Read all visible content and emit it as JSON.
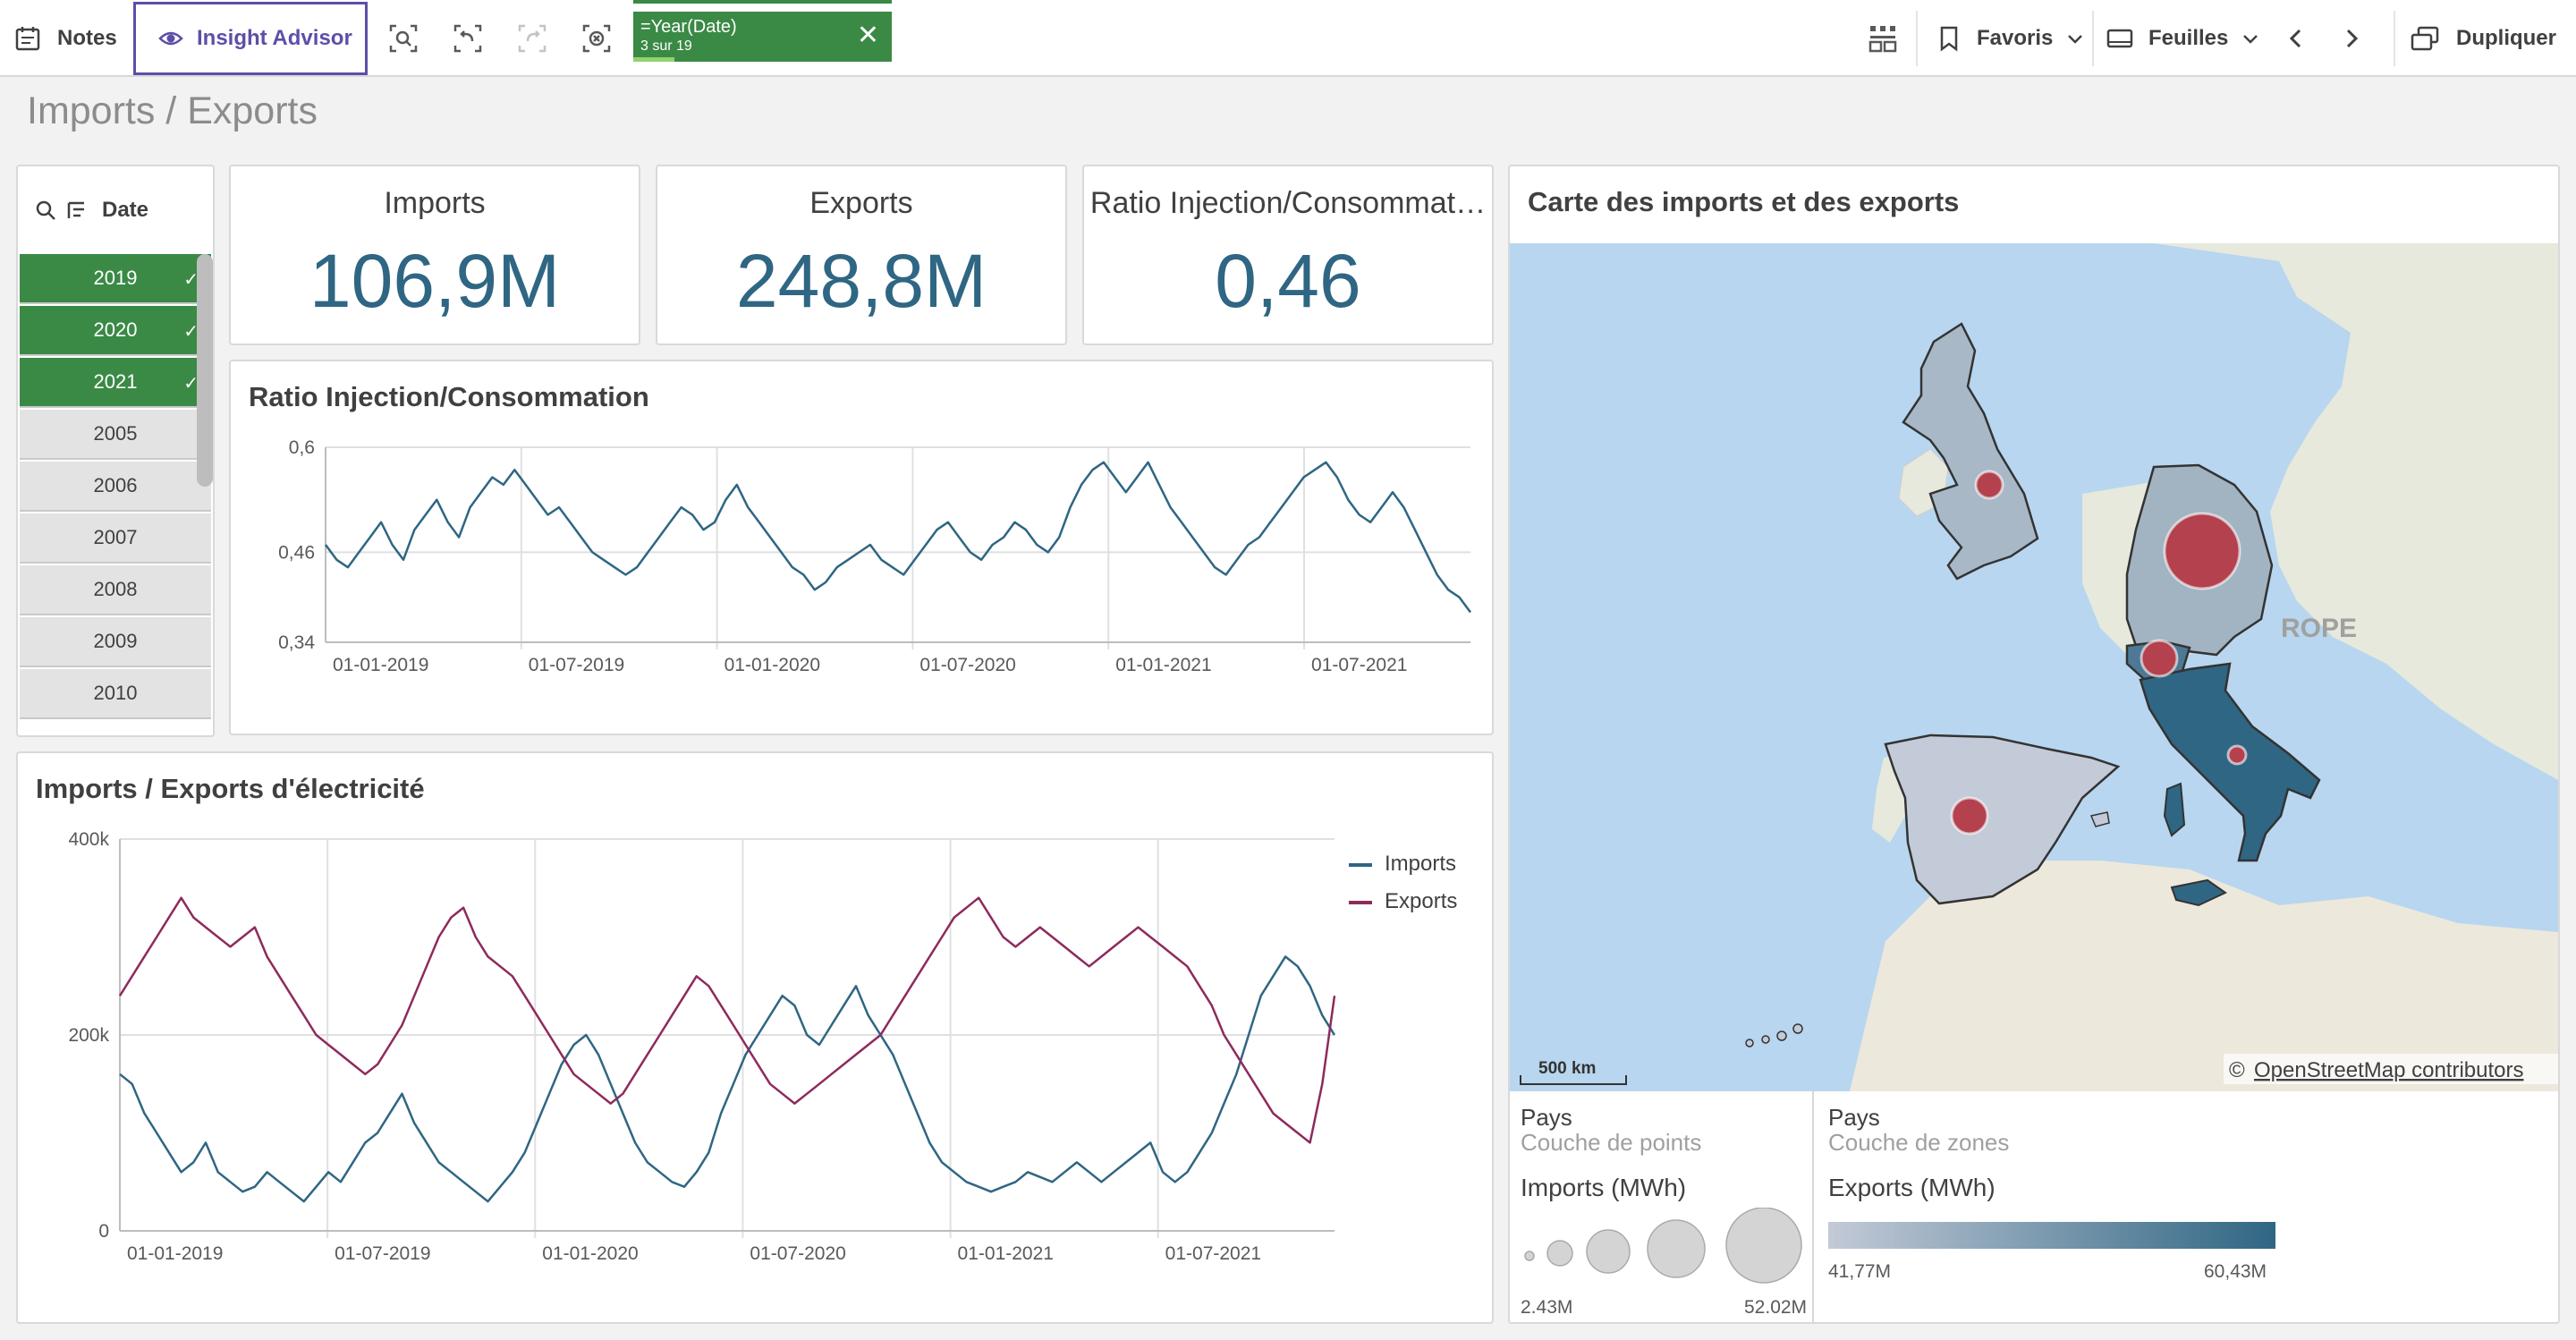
{
  "toolbar": {
    "notes_label": "Notes",
    "insight_label": "Insight Advisor",
    "selection": {
      "title": "=Year(Date)",
      "sub": "3 sur 19",
      "progress": 0.158
    },
    "favoris_label": "Favoris",
    "feuilles_label": "Feuilles",
    "dupliquer_label": "Dupliquer"
  },
  "sheet_title": "Imports / Exports",
  "filter": {
    "label": "Date",
    "items": [
      {
        "label": "2019",
        "selected": true
      },
      {
        "label": "2020",
        "selected": true
      },
      {
        "label": "2021",
        "selected": true
      },
      {
        "label": "2005",
        "selected": false
      },
      {
        "label": "2006",
        "selected": false
      },
      {
        "label": "2007",
        "selected": false
      },
      {
        "label": "2008",
        "selected": false
      },
      {
        "label": "2009",
        "selected": false
      },
      {
        "label": "2010",
        "selected": false
      }
    ]
  },
  "kpis": [
    {
      "label": "Imports",
      "value": "106,9M"
    },
    {
      "label": "Exports",
      "value": "248,8M"
    },
    {
      "label": "Ratio Injection/Consommat…",
      "value": "0,46"
    }
  ],
  "ratio_chart": {
    "title": "Ratio Injection/Consommation"
  },
  "io_chart": {
    "title": "Imports / Exports d'électricité"
  },
  "map": {
    "title": "Carte des imports et des exports",
    "scale_label": "500 km",
    "region_label": "ROPE",
    "copyright_prefix": "©",
    "copyright_link": "OpenStreetMap contributors",
    "legend_points": {
      "layer_name": "Pays",
      "layer_type": "Couche de points",
      "measure": "Imports (MWh)",
      "min": "2.43M",
      "max": "52.02M"
    },
    "legend_areas": {
      "layer_name": "Pays",
      "layer_type": "Couche de zones",
      "measure": "Exports (MWh)",
      "min": "41,77M",
      "max": "60,43M"
    }
  },
  "colors": {
    "accent_green": "#3a8a45",
    "imports_line": "#2f6683",
    "exports_line": "#8e2a5c",
    "kpi_value": "#2f6683",
    "bubble": "#b3414e",
    "insight": "#5c4fa8"
  },
  "chart_data": [
    {
      "type": "line",
      "title": "Ratio Injection/Consommation",
      "x_ticks": [
        "01-01-2019",
        "01-07-2019",
        "01-01-2020",
        "01-07-2020",
        "01-01-2021",
        "01-07-2021"
      ],
      "y_ticks": [
        "0,34",
        "0,46",
        "0,6"
      ],
      "ylim": [
        0.34,
        0.6
      ],
      "x_range": [
        "2019-01-01",
        "2021-12-31"
      ],
      "series": [
        {
          "values": [
            0.47,
            0.45,
            0.44,
            0.46,
            0.48,
            0.5,
            0.47,
            0.45,
            0.49,
            0.51,
            0.53,
            0.5,
            0.48,
            0.52,
            0.54,
            0.56,
            0.55,
            0.57,
            0.55,
            0.53,
            0.51,
            0.52,
            0.5,
            0.48,
            0.46,
            0.45,
            0.44,
            0.43,
            0.44,
            0.46,
            0.48,
            0.5,
            0.52,
            0.51,
            0.49,
            0.5,
            0.53,
            0.55,
            0.52,
            0.5,
            0.48,
            0.46,
            0.44,
            0.43,
            0.41,
            0.42,
            0.44,
            0.45,
            0.46,
            0.47,
            0.45,
            0.44,
            0.43,
            0.45,
            0.47,
            0.49,
            0.5,
            0.48,
            0.46,
            0.45,
            0.47,
            0.48,
            0.5,
            0.49,
            0.47,
            0.46,
            0.48,
            0.52,
            0.55,
            0.57,
            0.58,
            0.56,
            0.54,
            0.56,
            0.58,
            0.55,
            0.52,
            0.5,
            0.48,
            0.46,
            0.44,
            0.43,
            0.45,
            0.47,
            0.48,
            0.5,
            0.52,
            0.54,
            0.56,
            0.57,
            0.58,
            0.56,
            0.53,
            0.51,
            0.5,
            0.52,
            0.54,
            0.52,
            0.49,
            0.46,
            0.43,
            0.41,
            0.4,
            0.38
          ]
        }
      ]
    },
    {
      "type": "line",
      "title": "Imports / Exports d'électricité",
      "x_ticks": [
        "01-01-2019",
        "01-07-2019",
        "01-01-2020",
        "01-07-2020",
        "01-01-2021",
        "01-07-2021"
      ],
      "y_ticks": [
        "0",
        "200k",
        "400k"
      ],
      "ylim": [
        0,
        400000
      ],
      "x_range": [
        "2019-01-01",
        "2021-12-31"
      ],
      "legend_position": "top-right",
      "series": [
        {
          "name": "Imports",
          "values": [
            160000,
            150000,
            120000,
            100000,
            80000,
            60000,
            70000,
            90000,
            60000,
            50000,
            40000,
            45000,
            60000,
            50000,
            40000,
            30000,
            45000,
            60000,
            50000,
            70000,
            90000,
            100000,
            120000,
            140000,
            110000,
            90000,
            70000,
            60000,
            50000,
            40000,
            30000,
            45000,
            60000,
            80000,
            110000,
            140000,
            170000,
            190000,
            200000,
            180000,
            150000,
            120000,
            90000,
            70000,
            60000,
            50000,
            45000,
            60000,
            80000,
            120000,
            150000,
            180000,
            200000,
            220000,
            240000,
            230000,
            200000,
            190000,
            210000,
            230000,
            250000,
            220000,
            200000,
            180000,
            150000,
            120000,
            90000,
            70000,
            60000,
            50000,
            45000,
            40000,
            45000,
            50000,
            60000,
            55000,
            50000,
            60000,
            70000,
            60000,
            50000,
            60000,
            70000,
            80000,
            90000,
            60000,
            50000,
            60000,
            80000,
            100000,
            130000,
            160000,
            200000,
            240000,
            260000,
            280000,
            270000,
            250000,
            220000,
            200000
          ]
        },
        {
          "name": "Exports",
          "values": [
            240000,
            260000,
            280000,
            300000,
            320000,
            340000,
            320000,
            310000,
            300000,
            290000,
            300000,
            310000,
            280000,
            260000,
            240000,
            220000,
            200000,
            190000,
            180000,
            170000,
            160000,
            170000,
            190000,
            210000,
            240000,
            270000,
            300000,
            320000,
            330000,
            300000,
            280000,
            270000,
            260000,
            240000,
            220000,
            200000,
            180000,
            160000,
            150000,
            140000,
            130000,
            140000,
            160000,
            180000,
            200000,
            220000,
            240000,
            260000,
            250000,
            230000,
            210000,
            190000,
            170000,
            150000,
            140000,
            130000,
            140000,
            150000,
            160000,
            170000,
            180000,
            190000,
            200000,
            220000,
            240000,
            260000,
            280000,
            300000,
            320000,
            330000,
            340000,
            320000,
            300000,
            290000,
            300000,
            310000,
            300000,
            290000,
            280000,
            270000,
            280000,
            290000,
            300000,
            310000,
            300000,
            290000,
            280000,
            270000,
            250000,
            230000,
            200000,
            180000,
            160000,
            140000,
            120000,
            110000,
            100000,
            90000,
            150000,
            240000
          ]
        }
      ]
    }
  ]
}
